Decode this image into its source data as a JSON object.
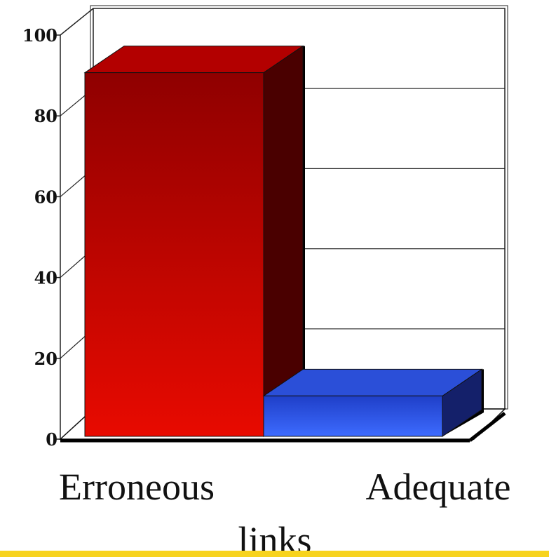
{
  "chart_data": {
    "type": "bar",
    "categories": [
      "Erroneous",
      "Adequate"
    ],
    "values": [
      90,
      10
    ],
    "ylim": [
      0,
      100
    ],
    "yticks": [
      "0",
      "20",
      "40",
      "60",
      "80",
      "100"
    ],
    "xlabel": "links",
    "ylabel": "",
    "title": "",
    "grid": true,
    "legend": "none",
    "bar_colors": [
      {
        "front_top": "#8f0000",
        "front_bottom": "#e80a00",
        "side": "#4a0000",
        "top": "#b30000"
      },
      {
        "front_top": "#1f3fc8",
        "front_bottom": "#3d6bff",
        "side": "#14206a",
        "top": "#2b4fd8"
      }
    ]
  },
  "colors": {
    "accent_band": "#f7d31e"
  }
}
